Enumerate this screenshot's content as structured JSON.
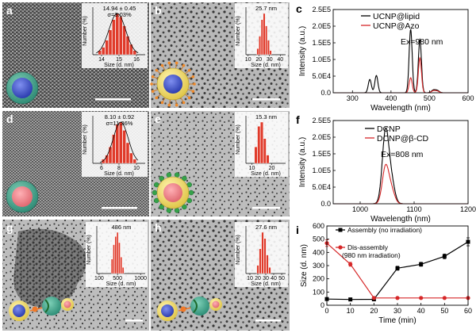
{
  "tem_panels": [
    {
      "label": "a",
      "inset_annotation": [
        "14.94 ± 0.45",
        "σ=3.03%"
      ],
      "hist": {
        "xlabel": "Size (d. nm)",
        "ylabel": "Number (%)",
        "xticks": [
          "14",
          "15",
          "16"
        ],
        "xmin": 13.5,
        "xmax": 16.5,
        "bins": [
          13.9,
          14.1,
          14.3,
          14.5,
          14.7,
          14.9,
          15.1,
          15.3,
          15.5,
          15.7,
          15.9
        ],
        "heights": [
          0.1,
          0.18,
          0.35,
          0.6,
          0.85,
          1.0,
          0.92,
          0.7,
          0.45,
          0.25,
          0.1
        ],
        "gauss": true
      }
    },
    {
      "label": "b",
      "inset_annotation": [
        "25.7 nm"
      ],
      "hist": {
        "xlabel": "Size (d. nm)",
        "ylabel": "Number (%)",
        "xticks": [
          "10",
          "20",
          "30",
          "40"
        ],
        "xmin": 8,
        "xmax": 45,
        "bins": [
          19,
          21,
          23,
          25,
          27,
          29,
          31
        ],
        "heights": [
          0.15,
          0.45,
          0.85,
          1.0,
          0.7,
          0.35,
          0.1
        ],
        "gauss": false
      }
    },
    {
      "label": "d",
      "inset_annotation": [
        "8.10 ± 0.92",
        "σ=11.36%"
      ],
      "hist": {
        "xlabel": "Size (d. nm)",
        "ylabel": "Number (%)",
        "xticks": [
          "6",
          "8",
          "10"
        ],
        "xmin": 5,
        "xmax": 11,
        "bins": [
          6.2,
          6.6,
          7.0,
          7.4,
          7.8,
          8.2,
          8.6,
          9.0,
          9.4,
          9.8
        ],
        "heights": [
          0.1,
          0.2,
          0.4,
          0.7,
          0.95,
          1.0,
          0.8,
          0.5,
          0.25,
          0.1
        ],
        "gauss": true
      }
    },
    {
      "label": "e",
      "inset_annotation": [
        "15.3 nm"
      ],
      "hist": {
        "xlabel": "Size (d. nm)",
        "ylabel": "Number (%)",
        "xticks": [
          "10",
          "20"
        ],
        "xmin": 7,
        "xmax": 27,
        "bins": [
          12,
          13.5,
          15,
          16.5,
          18
        ],
        "heights": [
          0.4,
          0.9,
          1.0,
          0.6,
          0.2
        ],
        "gauss": false
      }
    },
    {
      "label": "g",
      "inset_annotation": [
        "486 nm"
      ],
      "hist": {
        "xlabel": "Size (d. nm)",
        "ylabel": "Number (%)",
        "xticks": [
          "100",
          "500",
          "1000"
        ],
        "xmin": 50,
        "xmax": 1100,
        "bins": [
          380,
          420,
          460,
          500,
          540,
          580,
          620
        ],
        "heights": [
          0.35,
          0.7,
          0.9,
          1.0,
          0.75,
          0.4,
          0.15
        ],
        "gauss": false
      }
    },
    {
      "label": "h",
      "inset_annotation": [
        "27.6 nm"
      ],
      "hist": {
        "xlabel": "Size (d. nm)",
        "ylabel": "Number (%)",
        "xticks": [
          "10",
          "20",
          "30",
          "40",
          "50"
        ],
        "xmin": 5,
        "xmax": 55,
        "bins": [
          20,
          23,
          26,
          29,
          32,
          35
        ],
        "heights": [
          0.2,
          0.6,
          1.0,
          0.85,
          0.45,
          0.15
        ],
        "gauss": false
      }
    }
  ],
  "chart_data": [
    {
      "label": "c",
      "type": "line",
      "xlabel": "Wavelength (nm)",
      "ylabel": "Intensity (a.u.)",
      "xlim": [
        250,
        600
      ],
      "ylim": [
        0,
        250000
      ],
      "xticks": [
        300,
        400,
        500,
        600
      ],
      "xtick_labels": [
        "300",
        "400",
        "500",
        "600"
      ],
      "yticks": [
        0,
        50000,
        100000,
        150000,
        200000,
        250000
      ],
      "ytick_labels": [
        "0.0",
        "5.0E4",
        "1.0E5",
        "1.5E5",
        "2.0E5",
        "2.5E5"
      ],
      "annotation": "Ex=980 nm",
      "series": [
        {
          "name": "UCNP@lipid",
          "color": "#000000",
          "peaks": [
            [
              345,
              40000,
              4
            ],
            [
              362,
              52000,
              4
            ],
            [
              451,
              190000,
              4
            ],
            [
              475,
              160000,
              4
            ],
            [
              510,
              8000,
              5
            ],
            [
              520,
              7000,
              5
            ]
          ]
        },
        {
          "name": "UCNP@Azo",
          "color": "#d62728",
          "peaks": [
            [
              451,
              45000,
              4
            ],
            [
              475,
              105000,
              4
            ],
            [
              510,
              6000,
              5
            ],
            [
              520,
              5000,
              5
            ]
          ]
        }
      ]
    },
    {
      "label": "f",
      "type": "line",
      "xlabel": "Wavelength (nm)",
      "ylabel": "Intensity (a.u.)",
      "xlim": [
        950,
        1200
      ],
      "ylim": [
        0,
        250000
      ],
      "xticks": [
        1000,
        1100,
        1200
      ],
      "xtick_labels": [
        "1000",
        "1100",
        "1200"
      ],
      "yticks": [
        0,
        50000,
        100000,
        150000,
        200000,
        250000
      ],
      "ytick_labels": [
        "0.0",
        "5.0E4",
        "1.0E5",
        "1.5E5",
        "2.0E5",
        "2.5E5"
      ],
      "annotation": "Ex=808 nm",
      "series": [
        {
          "name": "DCNP",
          "color": "#000000",
          "peaks": [
            [
              1047,
              215000,
              6
            ],
            [
              1058,
              65000,
              6
            ]
          ]
        },
        {
          "name": "DCNP@β-CD",
          "color": "#d62728",
          "peaks": [
            [
              1047,
              110000,
              6
            ],
            [
              1058,
              40000,
              6
            ]
          ]
        }
      ]
    },
    {
      "label": "i",
      "type": "line",
      "xlabel": "Time (min)",
      "ylabel": "Size (d. nm)",
      "xlim": [
        0,
        60
      ],
      "ylim": [
        0,
        600
      ],
      "xticks": [
        0,
        10,
        20,
        30,
        40,
        50,
        60
      ],
      "xtick_labels": [
        "0",
        "10",
        "20",
        "30",
        "40",
        "50",
        "60"
      ],
      "yticks": [
        0,
        100,
        200,
        300,
        400,
        500,
        600
      ],
      "ytick_labels": [
        "0",
        "100",
        "200",
        "300",
        "400",
        "500",
        "600"
      ],
      "series": [
        {
          "name": "Assembly (no irradiation)",
          "color": "#000000",
          "x": [
            0,
            10,
            20,
            30,
            40,
            50,
            60
          ],
          "y": [
            47,
            44,
            45,
            280,
            310,
            370,
            480
          ],
          "err": [
            0,
            0,
            0,
            15,
            15,
            18,
            30
          ]
        },
        {
          "name": "Dis-assembly (980 nm irradiation)",
          "color": "#d62728",
          "x": [
            0,
            10,
            20,
            30,
            40,
            50,
            60
          ],
          "y": [
            470,
            310,
            55,
            55,
            55,
            55,
            55
          ],
          "err": [
            25,
            15,
            0,
            0,
            0,
            0,
            0
          ]
        }
      ]
    }
  ],
  "colors": {
    "accent_red": "#d62728",
    "hist_bar": "#e03a2a",
    "tem_bg": "#8c8c8c"
  }
}
